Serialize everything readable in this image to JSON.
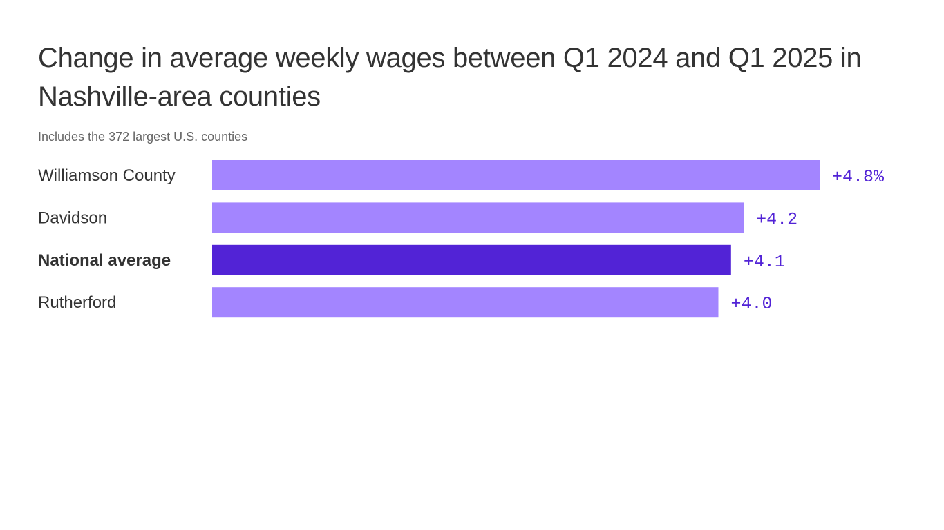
{
  "chart_data": {
    "type": "bar",
    "orientation": "horizontal",
    "title": "Change in average weekly wages between Q1 2024 and Q1 2025 in Nashville-area counties",
    "subtitle": "Includes the 372 largest U.S. counties",
    "categories": [
      "Williamson County",
      "Davidson",
      "National average",
      "Rutherford"
    ],
    "values": [
      4.8,
      4.2,
      4.1,
      4.0
    ],
    "data_labels": [
      "+4.8%",
      "+4.2",
      "+4.1",
      "+4.0"
    ],
    "highlight": [
      false,
      false,
      true,
      false
    ],
    "xlim": [
      0,
      4.8
    ],
    "grid": false,
    "colors": {
      "bar": "#a385ff",
      "highlight": "#5223d6",
      "label": "#5223d6"
    }
  }
}
